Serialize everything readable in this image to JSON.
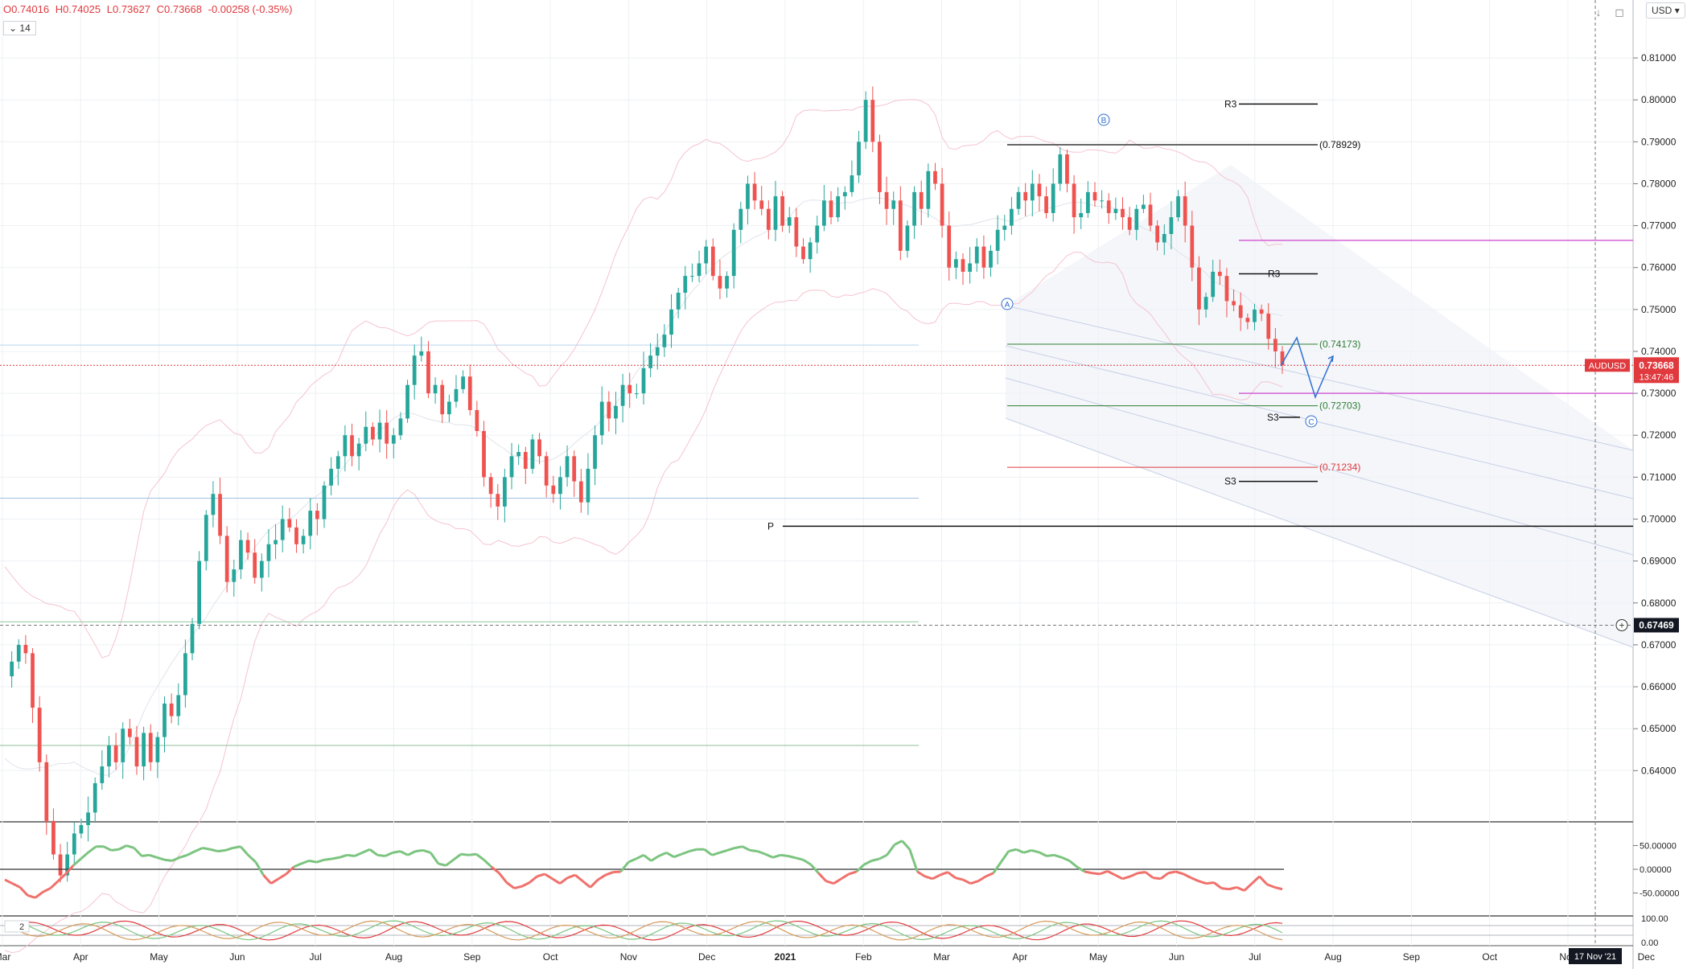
{
  "header": {
    "open": "O0.74016",
    "high": "H0.74025",
    "low": "L0.73627",
    "close": "C0.73668",
    "change": "-0.00258 (-0.35%)",
    "period": "14",
    "currency": "USD",
    "down_icon": "arrow-down-icon",
    "fullscreen_icon": "fullscreen-icon"
  },
  "colors": {
    "up": "#26a69a",
    "down": "#ef5350",
    "accent_red": "#e0393e",
    "magenta": "#d55fd5",
    "trend_blue": "#2f6fd1"
  },
  "chart_data": {
    "type": "candlestick",
    "symbol": "AUDUSD",
    "last_price": "0.73668",
    "countdown": "13:47:46",
    "crosshair_price": "0.67469",
    "crosshair_date": "17 Nov '21",
    "ylim": [
      0.632,
      0.815
    ],
    "y_ticks": [
      "0.81000",
      "0.80000",
      "0.79000",
      "0.78000",
      "0.77000",
      "0.76000",
      "0.75000",
      "0.74000",
      "0.73000",
      "0.72000",
      "0.71000",
      "0.70000",
      "0.69000",
      "0.68000",
      "0.67000",
      "0.66000",
      "0.65000",
      "0.64000"
    ],
    "x_labels": [
      "Mar",
      "Apr",
      "May",
      "Jun",
      "Jul",
      "Aug",
      "Sep",
      "Oct",
      "Nov",
      "Dec",
      "2021",
      "Feb",
      "Mar",
      "Apr",
      "May",
      "Jun",
      "Jul",
      "Aug",
      "Sep",
      "Oct",
      "Nov",
      "Dec"
    ],
    "prices": [
      0.6625,
      0.666,
      0.67,
      0.668,
      0.655,
      0.642,
      0.628,
      0.62,
      0.615,
      0.62,
      0.625,
      0.627,
      0.63,
      0.637,
      0.641,
      0.646,
      0.642,
      0.65,
      0.648,
      0.641,
      0.649,
      0.642,
      0.648,
      0.656,
      0.653,
      0.658,
      0.668,
      0.675,
      0.69,
      0.701,
      0.706,
      0.696,
      0.685,
      0.688,
      0.695,
      0.692,
      0.686,
      0.69,
      0.694,
      0.695,
      0.7,
      0.698,
      0.694,
      0.696,
      0.702,
      0.7,
      0.708,
      0.712,
      0.715,
      0.72,
      0.715,
      0.718,
      0.722,
      0.719,
      0.723,
      0.718,
      0.72,
      0.724,
      0.732,
      0.739,
      0.74,
      0.73,
      0.732,
      0.725,
      0.728,
      0.731,
      0.734,
      0.726,
      0.721,
      0.71,
      0.706,
      0.703,
      0.71,
      0.715,
      0.716,
      0.712,
      0.719,
      0.715,
      0.708,
      0.706,
      0.71,
      0.715,
      0.709,
      0.704,
      0.712,
      0.72,
      0.728,
      0.724,
      0.727,
      0.732,
      0.73,
      0.73,
      0.736,
      0.739,
      0.741,
      0.744,
      0.75,
      0.754,
      0.758,
      0.758,
      0.761,
      0.765,
      0.758,
      0.755,
      0.758,
      0.769,
      0.774,
      0.78,
      0.776,
      0.774,
      0.769,
      0.777,
      0.77,
      0.772,
      0.765,
      0.762,
      0.766,
      0.77,
      0.776,
      0.772,
      0.777,
      0.778,
      0.782,
      0.79,
      0.8,
      0.79,
      0.778,
      0.774,
      0.776,
      0.764,
      0.77,
      0.778,
      0.774,
      0.783,
      0.78,
      0.77,
      0.76,
      0.762,
      0.759,
      0.761,
      0.765,
      0.76,
      0.764,
      0.769,
      0.77,
      0.774,
      0.778,
      0.776,
      0.78,
      0.777,
      0.773,
      0.78,
      0.787,
      0.78,
      0.772,
      0.773,
      0.778,
      0.776,
      0.776,
      0.773,
      0.774,
      0.772,
      0.769,
      0.774,
      0.775,
      0.77,
      0.766,
      0.768,
      0.772,
      0.777,
      0.77,
      0.76,
      0.75,
      0.753,
      0.759,
      0.758,
      0.752,
      0.751,
      0.748,
      0.747,
      0.75,
      0.749,
      0.743,
      0.74,
      0.7367
    ],
    "indicator_1": {
      "ticks": [
        "50.00000",
        "0.00000",
        "-50.00000"
      ],
      "ylim": [
        -95,
        95
      ],
      "values": [
        -22,
        -30,
        -38,
        -55,
        -60,
        -48,
        -40,
        -25,
        -10,
        8,
        22,
        36,
        48,
        48,
        40,
        42,
        50,
        45,
        28,
        30,
        25,
        20,
        18,
        25,
        30,
        38,
        45,
        42,
        38,
        40,
        45,
        48,
        30,
        15,
        -12,
        -30,
        -20,
        -10,
        5,
        12,
        18,
        15,
        20,
        22,
        25,
        30,
        28,
        35,
        42,
        30,
        28,
        35,
        38,
        30,
        38,
        40,
        35,
        12,
        8,
        20,
        32,
        30,
        32,
        20,
        5,
        -8,
        -28,
        -40,
        -36,
        -28,
        -15,
        -10,
        -20,
        -30,
        -18,
        -12,
        -25,
        -38,
        -22,
        -12,
        -6,
        -5,
        15,
        22,
        30,
        18,
        28,
        35,
        26,
        32,
        38,
        42,
        42,
        30,
        35,
        40,
        45,
        48,
        40,
        38,
        32,
        25,
        30,
        28,
        24,
        20,
        10,
        -8,
        -25,
        -30,
        -20,
        -10,
        -5,
        10,
        18,
        22,
        30,
        52,
        60,
        42,
        -5,
        -15,
        -20,
        -12,
        -6,
        -18,
        -22,
        -30,
        -25,
        -15,
        -8,
        15,
        38,
        42,
        35,
        40,
        36,
        28,
        30,
        25,
        18,
        5,
        -5,
        -8,
        -10,
        -4,
        -12,
        -20,
        -15,
        -8,
        -6,
        -18,
        -20,
        -8,
        -5,
        -10,
        -18,
        -25,
        -30,
        -28,
        -40,
        -42,
        -38,
        -45,
        -30,
        -15,
        -32,
        -38,
        -42
      ]
    },
    "indicator_2": {
      "ticks": [
        "100.00",
        "0.00"
      ],
      "ylim": [
        0,
        100
      ]
    },
    "levels": {
      "b_label": "(0.78929)",
      "fib_1": "(0.74173)",
      "fib_2": "(0.72703)",
      "fib_3": "(0.71234)",
      "r3_label_a": "R3",
      "r3_label_b": "R3",
      "s3_label_a": "S3",
      "s3_label_b": "S3",
      "p_label": "P",
      "wave_a": "A",
      "wave_b": "B",
      "wave_c": "C"
    },
    "legend_period": "2"
  }
}
